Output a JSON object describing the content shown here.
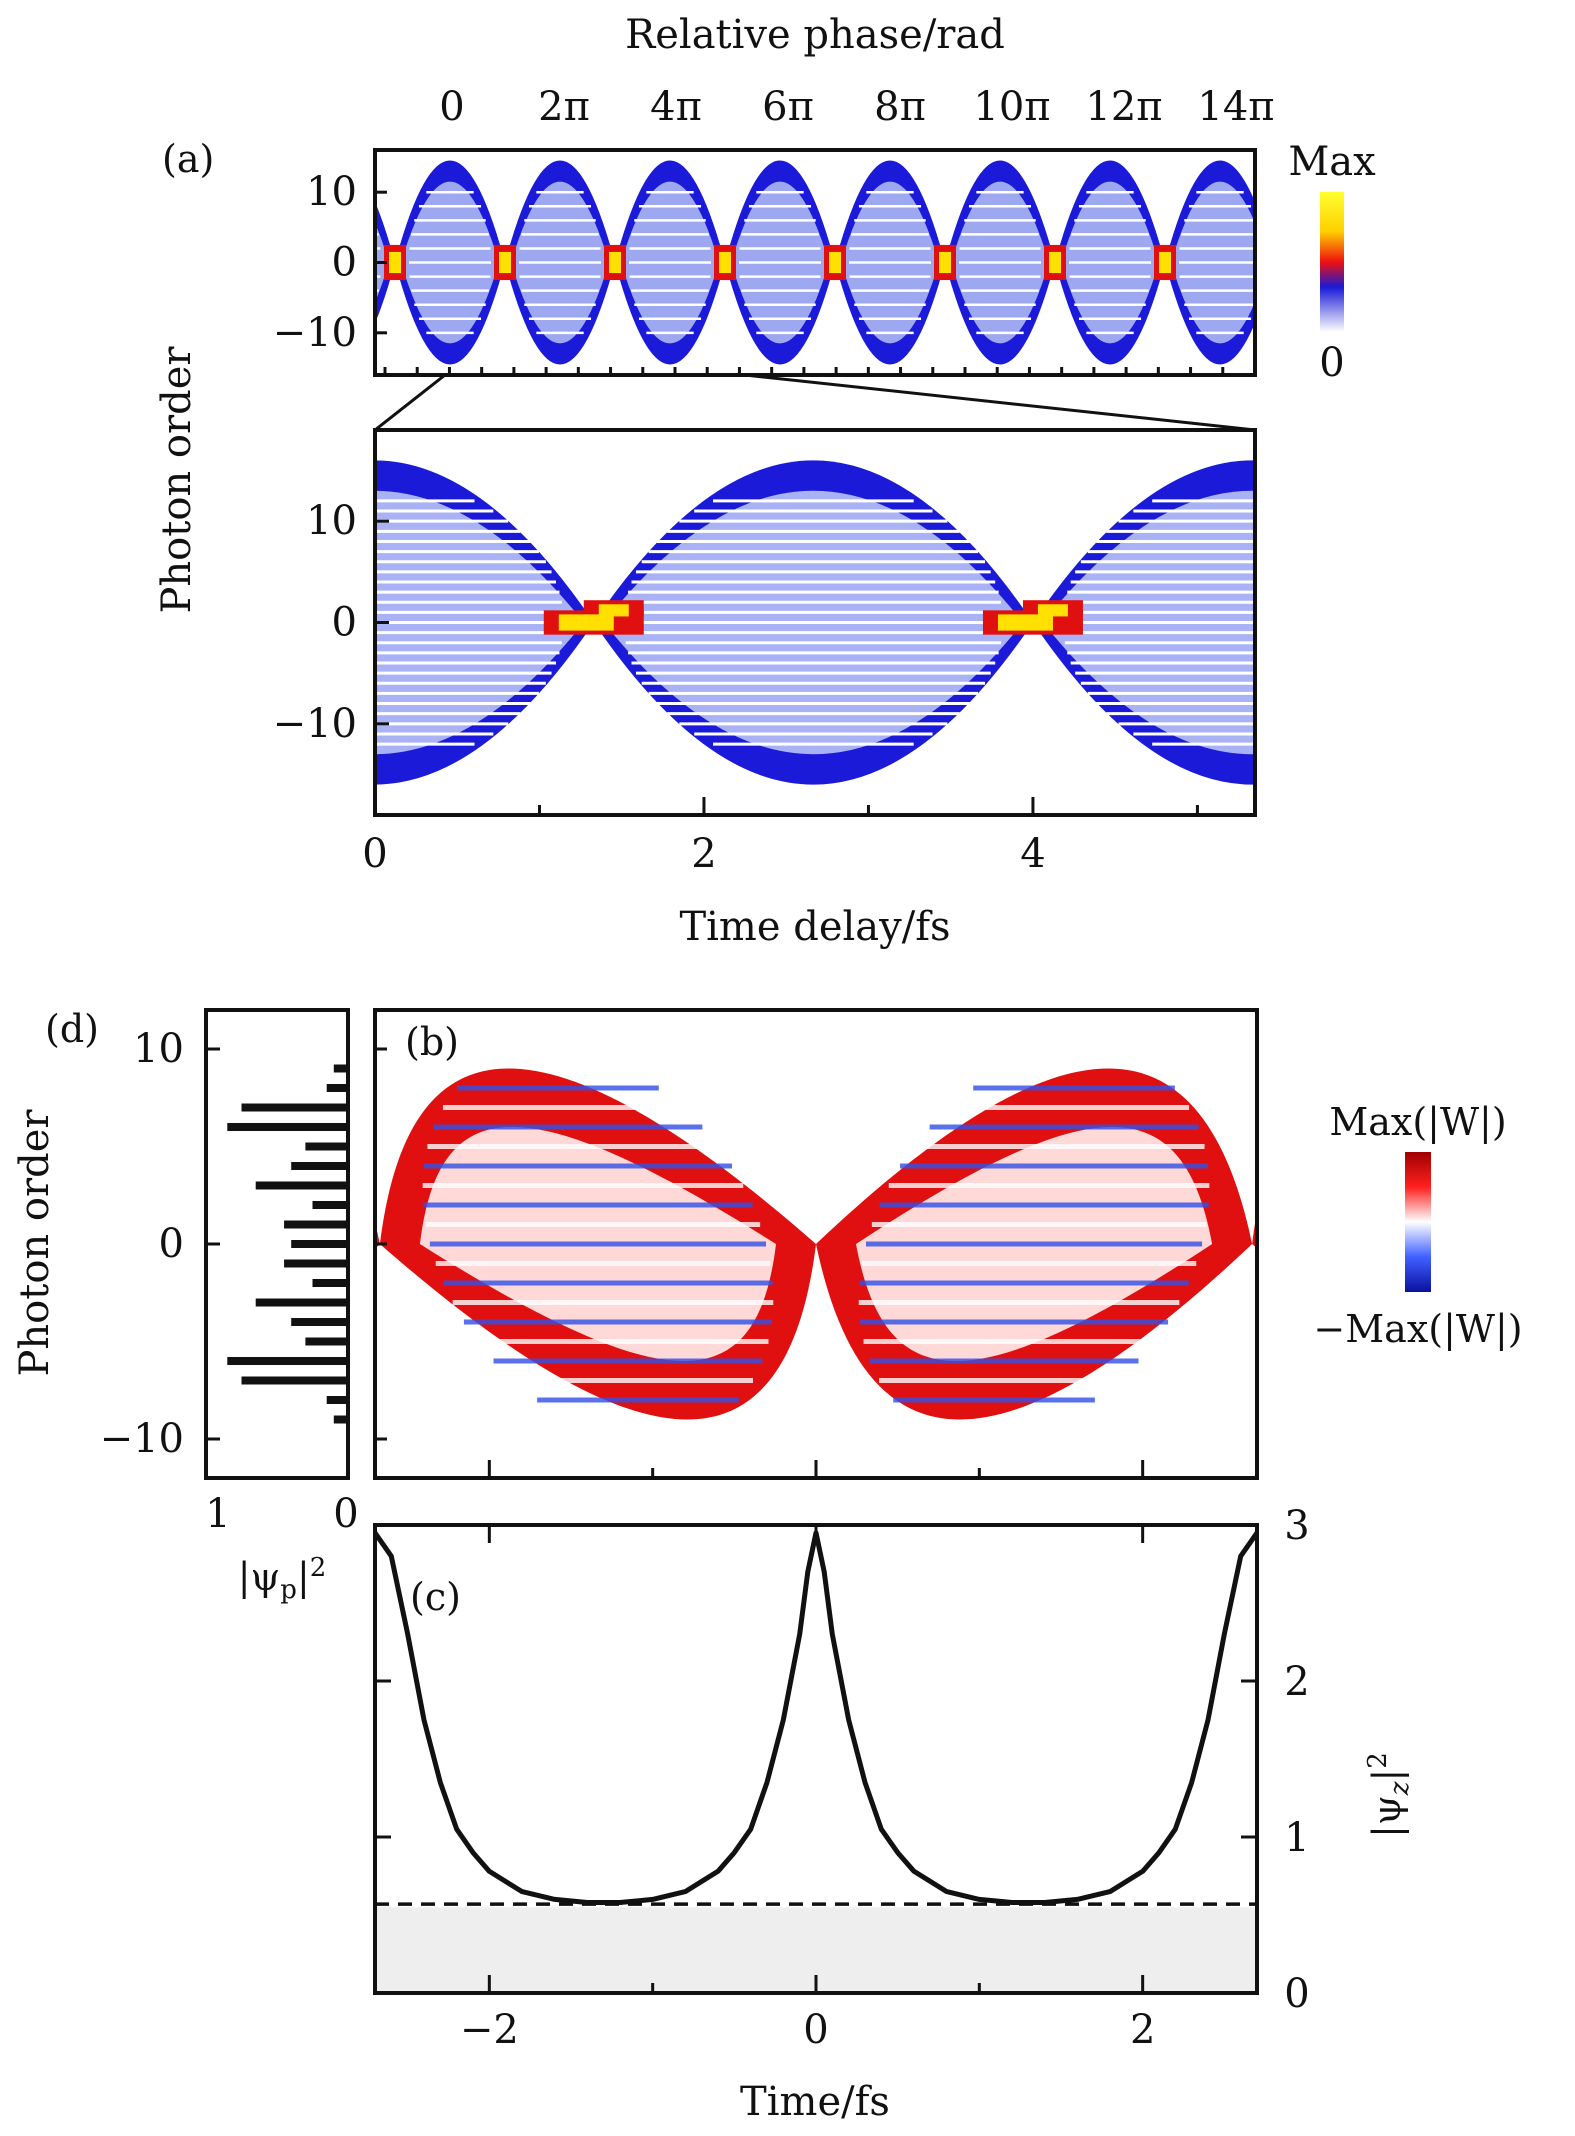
{
  "panels": {
    "a": {
      "tag": "(a)",
      "top_axis_title": "Relative phase/rad",
      "top_ticks": [
        "0",
        "2π",
        "4π",
        "6π",
        "8π",
        "10π",
        "12π",
        "14π"
      ],
      "yticks": [
        "10",
        "0",
        "−10"
      ],
      "colorbar": {
        "max": "Max",
        "min": "0"
      }
    },
    "zoom": {
      "yticks": [
        "10",
        "0",
        "−10"
      ],
      "xticks": [
        "0",
        "2",
        "4"
      ],
      "xlabel": "Time delay/fs"
    },
    "shared_ylabel": "Photon order",
    "b": {
      "tag": "(b)",
      "colorbar": {
        "max": "Max(|W|)",
        "min": "−Max(|W|)"
      }
    },
    "d": {
      "tag": "(d)",
      "ylabel": "Photon order",
      "yticks": [
        "10",
        "0",
        "−10"
      ],
      "xticks": [
        "1",
        "0"
      ],
      "xlabel": "|ψp|²"
    },
    "c": {
      "tag": "(c)",
      "xticks": [
        "−2",
        "0",
        "2"
      ],
      "xlabel": "Time/fs",
      "yticks": [
        "3",
        "2",
        "1",
        "0"
      ],
      "ylabel": "|ψz|²"
    }
  },
  "colors": {
    "blue": "#1a1ad8",
    "red": "#e01010",
    "yellow": "#ffe000",
    "black": "#111111",
    "shade": "#eeeeee"
  },
  "chart_data": [
    {
      "id": "a",
      "type": "heatmap",
      "description_of_axes": "photon order vs relative phase",
      "x": {
        "unit": "rad",
        "ticks_pi": [
          0,
          2,
          4,
          6,
          8,
          10,
          12,
          14
        ]
      },
      "y": {
        "ylim": [
          -16,
          16
        ],
        "ticks": [
          10,
          0,
          -10
        ]
      },
      "focus_points_x_pi": [
        0,
        2,
        4,
        6,
        8,
        10,
        12,
        14
      ],
      "colorbar": [
        "0",
        "Max"
      ]
    },
    {
      "id": "a-zoom",
      "type": "heatmap",
      "x": {
        "xlim": [
          0,
          5.35
        ],
        "ticks": [
          0,
          2,
          4
        ]
      },
      "y": {
        "ylim": [
          -19,
          19
        ],
        "ticks": [
          10,
          0,
          -10
        ]
      },
      "focus_points_x_fs": [
        1.33,
        4.0
      ]
    },
    {
      "id": "b",
      "type": "heatmap",
      "x": {
        "xlim": [
          -2.7,
          2.7
        ],
        "ticks": [
          -2,
          0,
          2
        ]
      },
      "y": {
        "ylim": [
          -12,
          12
        ],
        "ticks": [
          10,
          0,
          -10
        ]
      },
      "colorbar": [
        "−Max(|W|)",
        "Max(|W|)"
      ]
    },
    {
      "id": "c",
      "type": "line",
      "x": {
        "xlim": [
          -2.7,
          2.7
        ],
        "ticks": [
          -2,
          0,
          2
        ]
      },
      "y": {
        "ylim": [
          0,
          3
        ],
        "ticks": [
          0,
          1,
          2,
          3
        ]
      },
      "series": [
        {
          "style": "solid",
          "x": [
            -2.7,
            -2.6,
            -2.5,
            -2.4,
            -2.3,
            -2.2,
            -2.1,
            -2.0,
            -1.8,
            -1.6,
            -1.4,
            -1.2,
            -1.0,
            -0.8,
            -0.6,
            -0.5,
            -0.4,
            -0.3,
            -0.2,
            -0.1,
            -0.05,
            0.0,
            0.05,
            0.1,
            0.2,
            0.3,
            0.4,
            0.5,
            0.6,
            0.8,
            1.0,
            1.2,
            1.4,
            1.6,
            1.8,
            2.0,
            2.1,
            2.2,
            2.3,
            2.4,
            2.5,
            2.6,
            2.7
          ],
          "y": [
            2.95,
            2.8,
            2.3,
            1.75,
            1.35,
            1.05,
            0.9,
            0.78,
            0.65,
            0.6,
            0.58,
            0.58,
            0.6,
            0.65,
            0.78,
            0.9,
            1.05,
            1.35,
            1.75,
            2.3,
            2.7,
            2.95,
            2.7,
            2.3,
            1.75,
            1.35,
            1.05,
            0.9,
            0.78,
            0.65,
            0.6,
            0.58,
            0.58,
            0.6,
            0.65,
            0.78,
            0.9,
            1.05,
            1.35,
            1.75,
            2.3,
            2.8,
            2.95
          ]
        },
        {
          "style": "dashed",
          "x": [
            -2.7,
            2.7
          ],
          "y": [
            0.57,
            0.57
          ]
        }
      ],
      "shaded_band": [
        0,
        0.55
      ]
    },
    {
      "id": "d",
      "type": "bar",
      "orientation": "horizontal",
      "x": {
        "xlim": [
          1,
          0
        ],
        "ticks": [
          1,
          0
        ]
      },
      "y": {
        "ylim": [
          -12,
          12
        ],
        "ticks": [
          10,
          0,
          -10
        ]
      },
      "categories": [
        -9,
        -8,
        -7,
        -6,
        -5,
        -4,
        -3,
        -2,
        -1,
        0,
        1,
        2,
        3,
        4,
        5,
        6,
        7,
        8,
        9
      ],
      "values": [
        0.1,
        0.15,
        0.75,
        0.85,
        0.3,
        0.4,
        0.65,
        0.25,
        0.45,
        0.4,
        0.45,
        0.25,
        0.65,
        0.4,
        0.3,
        0.85,
        0.75,
        0.15,
        0.1
      ]
    }
  ]
}
